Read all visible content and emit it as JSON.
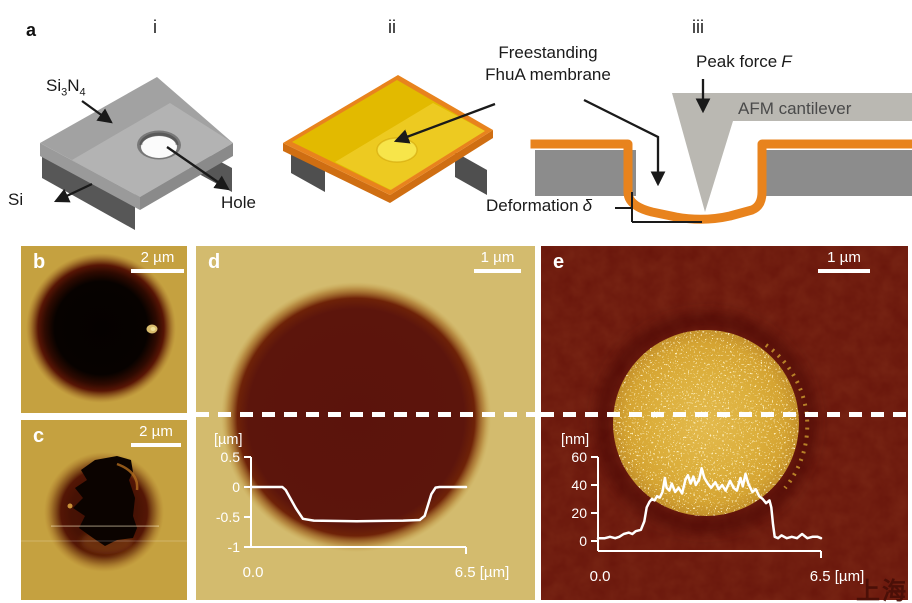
{
  "figure": {
    "panel_a": {
      "label": "a",
      "i": {
        "label": "i",
        "si3n4": {
          "base1": "Si",
          "sub1": "3",
          "base2": "N",
          "sub2": "4"
        },
        "si": "Si",
        "hole": "Hole"
      },
      "ii": {
        "label": "ii",
        "membrane_line1": "Freestanding",
        "membrane_line2": "FhuA membrane"
      },
      "iii": {
        "label": "iii",
        "peak_force": "Peak force",
        "peak_force_symbol": "F",
        "cantilever": "AFM cantilever",
        "deformation": "Deformation",
        "deformation_symbol": "δ"
      }
    },
    "panel_b": {
      "label": "b",
      "scalebar": "2 µm"
    },
    "panel_c": {
      "label": "c",
      "scalebar": "2 µm"
    },
    "panel_d": {
      "label": "d",
      "scalebar": "1 µm"
    },
    "panel_e": {
      "label": "e",
      "scalebar": "1 µm"
    },
    "watermark": "上海"
  },
  "colors": {
    "membrane-orange": "#e8831d",
    "chip-yellow": "#e2ba00",
    "bright-yellow": "#f7e54a",
    "afm-gold-bg": "#c5a140",
    "afm-tan-bg": "#d3bb6e",
    "afm-maroon-bg": "#68150b",
    "hole-dark": "#5c140d",
    "gray-top": "#a6a6a6",
    "gray-base": "#575757",
    "cantilever-gray": "#bab8b2",
    "profile-white": "#ffffff"
  },
  "chart_data": [
    {
      "id": "inset-d",
      "type": "line",
      "title": "Height profile across uncovered hole (dashed line)",
      "y_unit_label": "[µm]",
      "x_start_label": "0.0",
      "x_end_label": "6.5 [µm]",
      "xlim": [
        0,
        6.5
      ],
      "ylim": [
        -1,
        0.5
      ],
      "yticks": [
        {
          "value": 0.5,
          "label": "0.5"
        },
        {
          "value": 0,
          "label": "0"
        },
        {
          "value": -0.5,
          "label": "-0.5"
        },
        {
          "value": -1,
          "label": "-1"
        }
      ],
      "points": [
        [
          0,
          0
        ],
        [
          0.95,
          0
        ],
        [
          1.05,
          -0.05
        ],
        [
          1.35,
          -0.35
        ],
        [
          1.57,
          -0.53
        ],
        [
          1.9,
          -0.56
        ],
        [
          3.2,
          -0.57
        ],
        [
          4.6,
          -0.56
        ],
        [
          5.1,
          -0.55
        ],
        [
          5.25,
          -0.48
        ],
        [
          5.45,
          -0.12
        ],
        [
          5.58,
          -0.01
        ],
        [
          5.7,
          0
        ],
        [
          6.5,
          0
        ]
      ]
    },
    {
      "id": "inset-e",
      "type": "line",
      "title": "Height profile across membrane-covered hole (dashed line)",
      "y_unit_label": "[nm]",
      "x_start_label": "0.0",
      "x_end_label": "6.5 [µm]",
      "xlim": [
        0,
        6.5
      ],
      "ylim": [
        0,
        60
      ],
      "yticks": [
        {
          "value": 60,
          "label": "60"
        },
        {
          "value": 40,
          "label": "40"
        },
        {
          "value": 20,
          "label": "20"
        },
        {
          "value": 0,
          "label": "0"
        }
      ],
      "points": [
        [
          0,
          2
        ],
        [
          0.2,
          2
        ],
        [
          0.35,
          3
        ],
        [
          0.5,
          2
        ],
        [
          0.62,
          3
        ],
        [
          0.75,
          5
        ],
        [
          0.9,
          6
        ],
        [
          1.0,
          5
        ],
        [
          1.1,
          7
        ],
        [
          1.25,
          8
        ],
        [
          1.35,
          14
        ],
        [
          1.42,
          24
        ],
        [
          1.5,
          28
        ],
        [
          1.57,
          30
        ],
        [
          1.65,
          29
        ],
        [
          1.72,
          32
        ],
        [
          1.8,
          31
        ],
        [
          1.88,
          35
        ],
        [
          1.95,
          45
        ],
        [
          2.0,
          38
        ],
        [
          2.08,
          36
        ],
        [
          2.15,
          41
        ],
        [
          2.25,
          35
        ],
        [
          2.35,
          38
        ],
        [
          2.45,
          34
        ],
        [
          2.55,
          44
        ],
        [
          2.62,
          47
        ],
        [
          2.7,
          41
        ],
        [
          2.78,
          46
        ],
        [
          2.85,
          40
        ],
        [
          2.95,
          44
        ],
        [
          3.02,
          52
        ],
        [
          3.1,
          45
        ],
        [
          3.2,
          41
        ],
        [
          3.3,
          38
        ],
        [
          3.42,
          42
        ],
        [
          3.52,
          37
        ],
        [
          3.62,
          40
        ],
        [
          3.72,
          36
        ],
        [
          3.85,
          43
        ],
        [
          3.95,
          38
        ],
        [
          4.05,
          36
        ],
        [
          4.15,
          45
        ],
        [
          4.22,
          39
        ],
        [
          4.3,
          48
        ],
        [
          4.38,
          41
        ],
        [
          4.5,
          35
        ],
        [
          4.6,
          37
        ],
        [
          4.7,
          32
        ],
        [
          4.8,
          30
        ],
        [
          4.9,
          27
        ],
        [
          5.0,
          29
        ],
        [
          5.05,
          24
        ],
        [
          5.1,
          12
        ],
        [
          5.15,
          3
        ],
        [
          5.25,
          2
        ],
        [
          5.35,
          4
        ],
        [
          5.5,
          2
        ],
        [
          5.65,
          3
        ],
        [
          5.8,
          2
        ],
        [
          5.95,
          5
        ],
        [
          6.1,
          2
        ],
        [
          6.25,
          3
        ],
        [
          6.4,
          3
        ],
        [
          6.5,
          2
        ]
      ]
    }
  ]
}
